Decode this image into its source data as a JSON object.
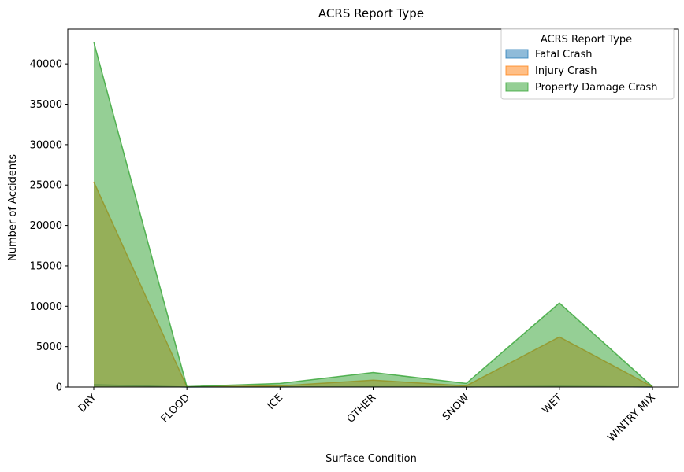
{
  "chart_data": {
    "type": "area",
    "title": "ACRS Report Type",
    "xlabel": "Surface Condition",
    "ylabel": "Number of Accidents",
    "categories": [
      "DRY",
      "FLOOD",
      "ICE",
      "OTHER",
      "SNOW",
      "WET",
      "WINTRY MIX"
    ],
    "ylim": [
      0,
      44300
    ],
    "yticks": [
      0,
      5000,
      10000,
      15000,
      20000,
      25000,
      30000,
      35000,
      40000
    ],
    "ytick_labels": [
      "0",
      "5000",
      "10000",
      "15000",
      "20000",
      "25000",
      "30000",
      "35000",
      "40000"
    ],
    "stacked": false,
    "grid": false,
    "legend": {
      "title": "ACRS Report Type",
      "placement": "top-right"
    },
    "series": [
      {
        "name": "Fatal Crash",
        "values": [
          300,
          5,
          15,
          40,
          10,
          100,
          5
        ],
        "color": "#1f77b4"
      },
      {
        "name": "Injury Crash",
        "values": [
          25400,
          20,
          150,
          850,
          150,
          6200,
          40
        ],
        "color": "#ff7f0e"
      },
      {
        "name": "Property Damage Crash",
        "values": [
          42700,
          50,
          450,
          1800,
          450,
          10400,
          60
        ],
        "color": "#2ca02c"
      }
    ]
  }
}
